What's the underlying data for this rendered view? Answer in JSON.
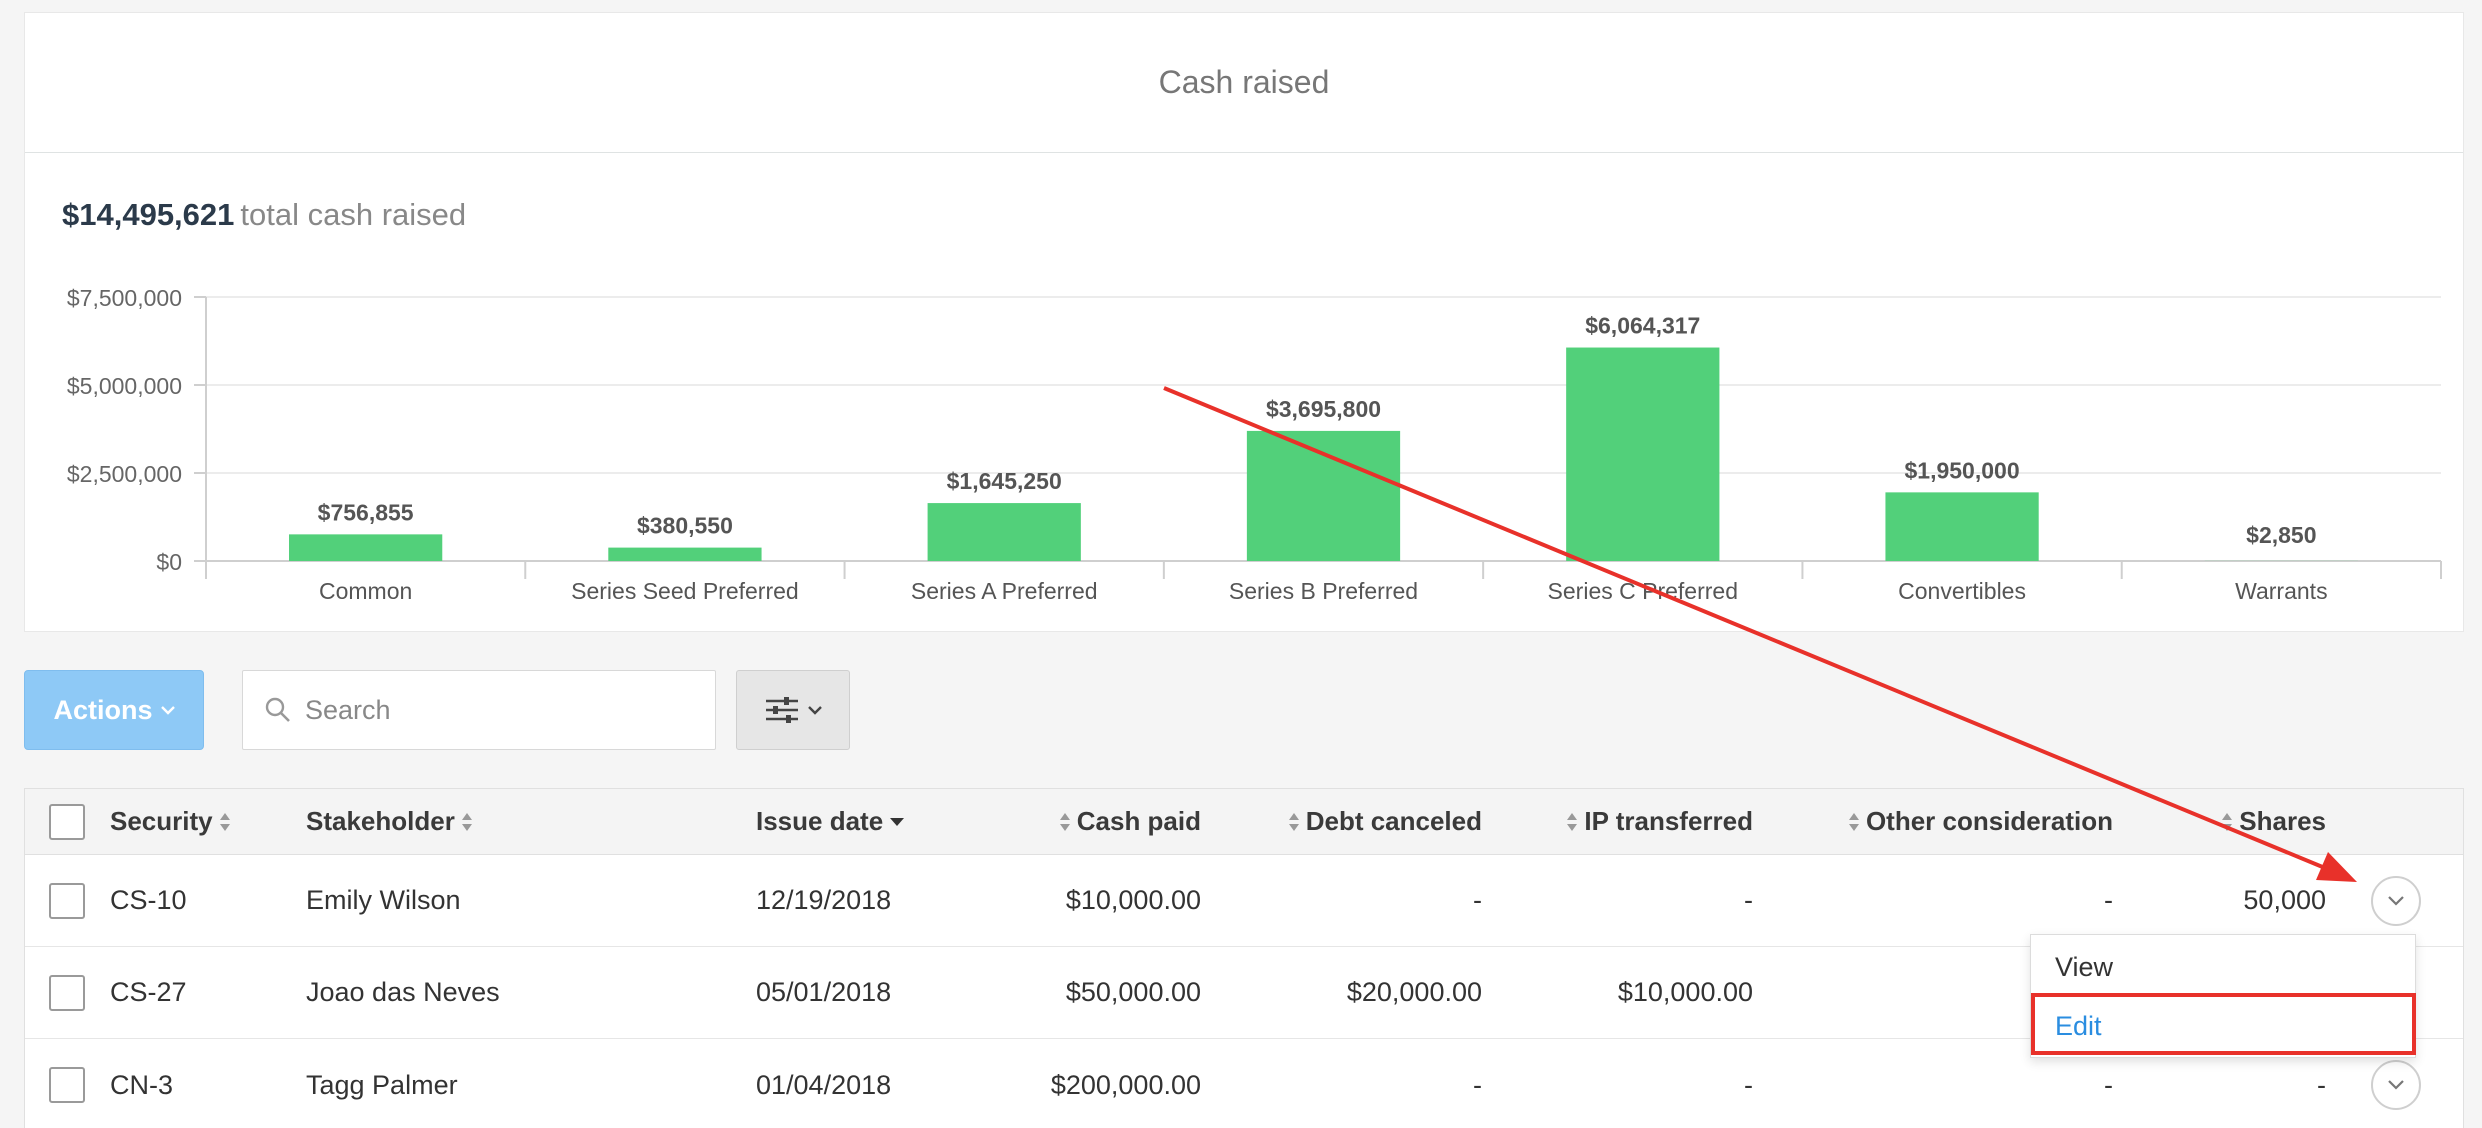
{
  "card": {
    "title": "Cash raised",
    "total_amount": "$14,495,621",
    "total_label": "total cash raised"
  },
  "chart_data": {
    "type": "bar",
    "categories": [
      "Common",
      "Series Seed Preferred",
      "Series A Preferred",
      "Series B Preferred",
      "Series C Preferred",
      "Convertibles",
      "Warrants"
    ],
    "values": [
      756855,
      380550,
      1645250,
      3695800,
      6064317,
      1950000,
      2850
    ],
    "value_labels": [
      "$756,855",
      "$380,550",
      "$1,645,250",
      "$3,695,800",
      "$6,064,317",
      "$1,950,000",
      "$2,850"
    ],
    "y_ticks": [
      0,
      2500000,
      5000000,
      7500000
    ],
    "y_tick_labels": [
      "$0",
      "$2,500,000",
      "$5,000,000",
      "$7,500,000"
    ],
    "ylim": [
      0,
      7500000
    ],
    "grid": true,
    "bar_color": "#52d07a",
    "xlabel": "",
    "ylabel": ""
  },
  "toolbar": {
    "actions_label": "Actions",
    "search_placeholder": "Search"
  },
  "table": {
    "headers": [
      "Security",
      "Stakeholder",
      "Issue date",
      "Cash paid",
      "Debt canceled",
      "IP transferred",
      "Other consideration",
      "Shares"
    ],
    "rows": [
      {
        "security": "CS-10",
        "stakeholder": "Emily Wilson",
        "issue_date": "12/19/2018",
        "cash_paid": "$10,000.00",
        "debt_canceled": "-",
        "ip_transferred": "-",
        "other": "-",
        "shares": "50,000"
      },
      {
        "security": "CS-27",
        "stakeholder": "Joao das Neves",
        "issue_date": "05/01/2018",
        "cash_paid": "$50,000.00",
        "debt_canceled": "$20,000.00",
        "ip_transferred": "$10,000.00",
        "other": "",
        "shares": ""
      },
      {
        "security": "CN-3",
        "stakeholder": "Tagg Palmer",
        "issue_date": "01/04/2018",
        "cash_paid": "$200,000.00",
        "debt_canceled": "-",
        "ip_transferred": "-",
        "other": "-",
        "shares": "-"
      }
    ]
  },
  "dropdown": {
    "view_label": "View",
    "edit_label": "Edit"
  },
  "colors": {
    "accent": "#8ec9f6",
    "link": "#2a8de0",
    "annotation": "#e8312a",
    "bar": "#52d07a"
  }
}
